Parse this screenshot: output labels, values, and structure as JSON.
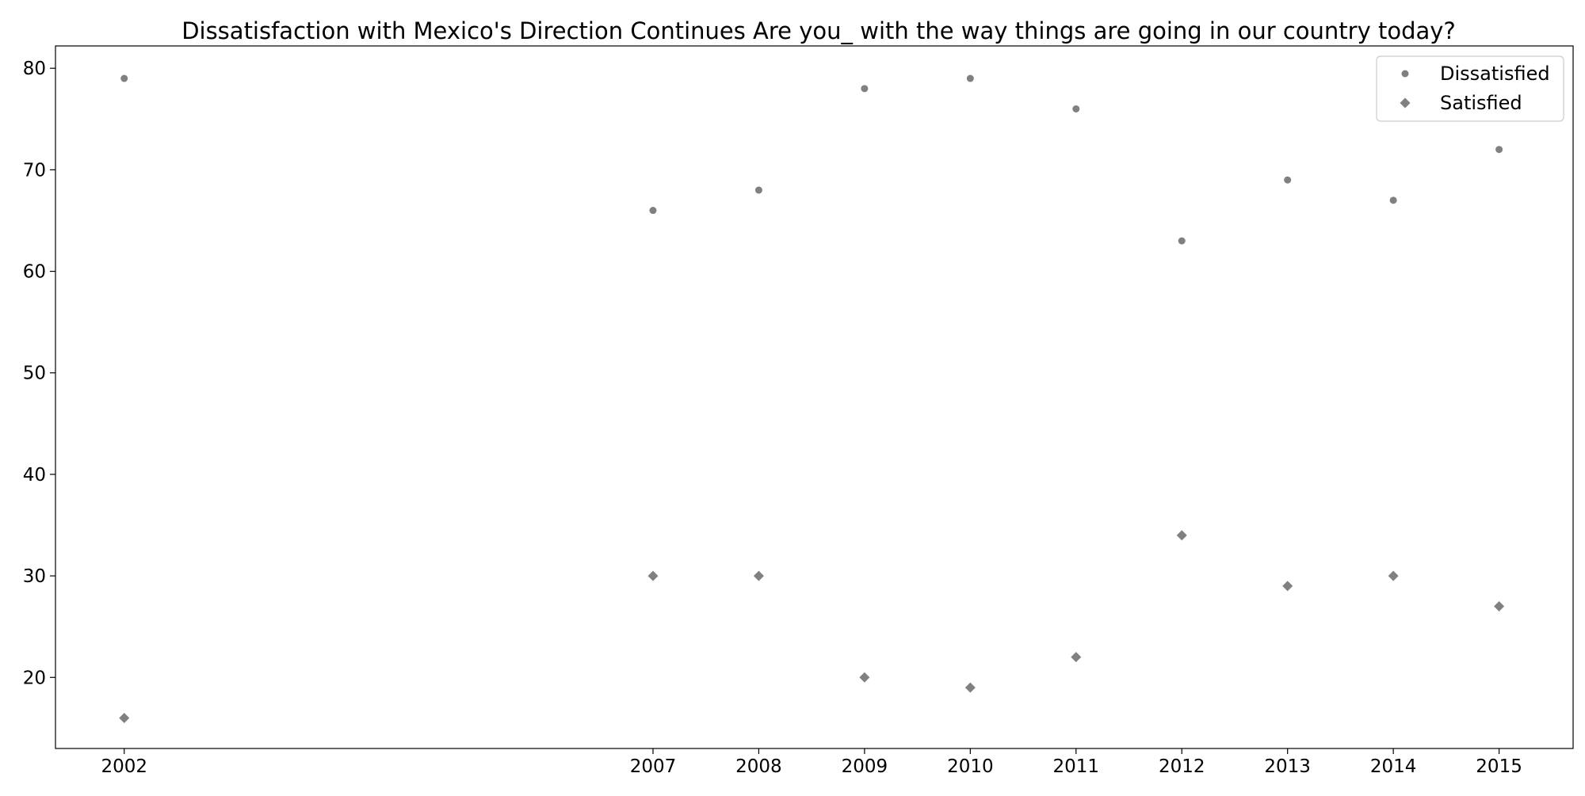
{
  "chart_data": {
    "type": "scatter",
    "title": "Dissatisfaction with Mexico's Direction Continues Are you_ with the way things are going in our country today?",
    "xlabel": "",
    "ylabel": "",
    "x": [
      2002,
      2007,
      2008,
      2009,
      2010,
      2011,
      2012,
      2013,
      2014,
      2015
    ],
    "x_ticks": [
      2002,
      2007,
      2008,
      2009,
      2010,
      2011,
      2012,
      2013,
      2014,
      2015
    ],
    "y_ticks": [
      20,
      30,
      40,
      50,
      60,
      70,
      80
    ],
    "xlim": [
      2001.35,
      2015.7
    ],
    "ylim": [
      13,
      82.2
    ],
    "grid": false,
    "legend_position": "top-right",
    "series": [
      {
        "name": "Dissatisfied",
        "marker": "circle",
        "color": "#808080",
        "values": [
          79,
          66,
          68,
          78,
          79,
          76,
          63,
          69,
          67,
          72
        ]
      },
      {
        "name": "Satisfied",
        "marker": "diamond",
        "color": "#808080",
        "values": [
          16,
          30,
          30,
          20,
          19,
          22,
          34,
          29,
          30,
          27
        ]
      }
    ]
  }
}
